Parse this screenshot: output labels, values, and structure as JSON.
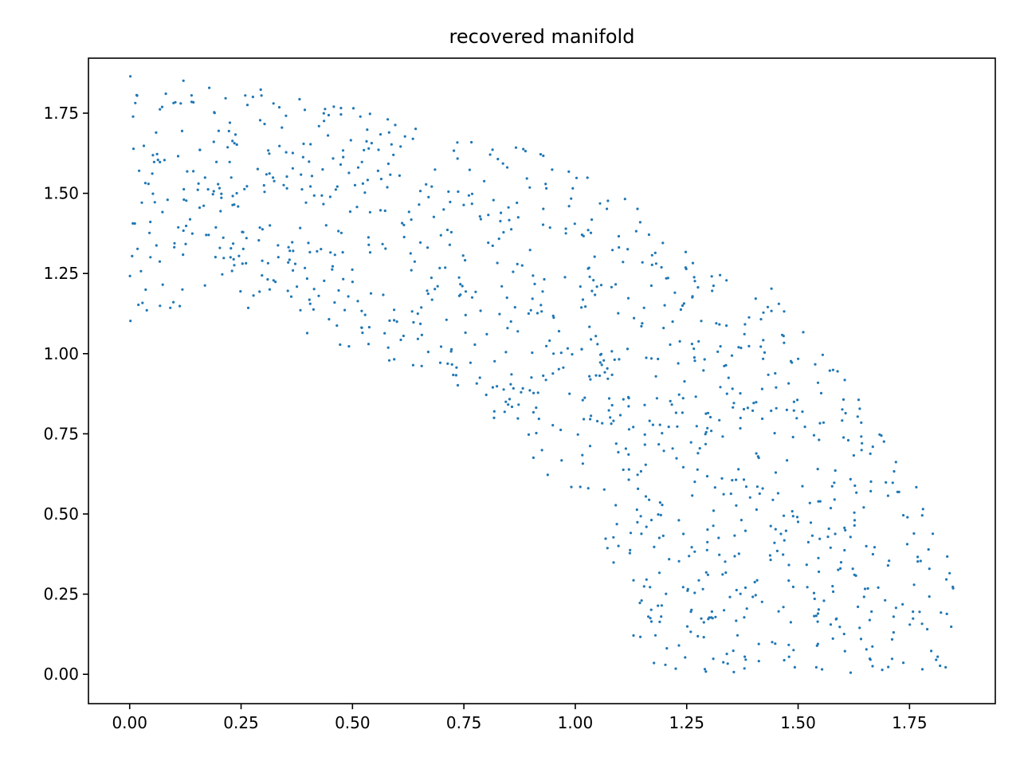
{
  "chart_data": {
    "type": "scatter",
    "title": "recovered manifold",
    "xlabel": "",
    "ylabel": "",
    "xlim": [
      -0.0925,
      1.9425
    ],
    "ylim": [
      -0.0915,
      1.9215
    ],
    "xticks": [
      0.0,
      0.25,
      0.5,
      0.75,
      1.0,
      1.25,
      1.5,
      1.75
    ],
    "xtick_labels": [
      "0.00",
      "0.25",
      "0.50",
      "0.75",
      "1.00",
      "1.25",
      "1.50",
      "1.75"
    ],
    "yticks": [
      0.0,
      0.25,
      0.5,
      0.75,
      1.0,
      1.25,
      1.5,
      1.75
    ],
    "ytick_labels": [
      "0.00",
      "0.25",
      "0.50",
      "0.75",
      "1.00",
      "1.25",
      "1.50",
      "1.75"
    ],
    "grid": false,
    "legend": "none",
    "color": "#1f77b4",
    "generator": {
      "method": "estimated sample of a uniformly filled region under a descending curve",
      "count": 1100,
      "x_range": [
        0.0,
        1.85
      ],
      "upper_boundary": [
        [
          0.0,
          1.87
        ],
        [
          0.3,
          1.83
        ],
        [
          0.55,
          1.75
        ],
        [
          0.75,
          1.68
        ],
        [
          0.85,
          1.65
        ],
        [
          1.0,
          1.6
        ],
        [
          1.1,
          1.5
        ],
        [
          1.2,
          1.38
        ],
        [
          1.3,
          1.26
        ],
        [
          1.45,
          1.2
        ],
        [
          1.55,
          1.02
        ],
        [
          1.62,
          0.92
        ],
        [
          1.7,
          0.75
        ],
        [
          1.8,
          0.5
        ],
        [
          1.85,
          0.35
        ]
      ],
      "lower_boundary": [
        [
          0.0,
          1.1
        ],
        [
          0.12,
          1.15
        ],
        [
          0.2,
          1.15
        ],
        [
          0.4,
          1.05
        ],
        [
          0.5,
          1.0
        ],
        [
          0.6,
          0.96
        ],
        [
          0.7,
          0.93
        ],
        [
          0.78,
          0.85
        ],
        [
          0.85,
          0.75
        ],
        [
          0.95,
          0.6
        ],
        [
          1.05,
          0.45
        ],
        [
          1.1,
          0.25
        ],
        [
          1.14,
          0.05
        ],
        [
          1.2,
          0.0
        ],
        [
          1.85,
          0.0
        ]
      ],
      "seed": 42
    }
  }
}
